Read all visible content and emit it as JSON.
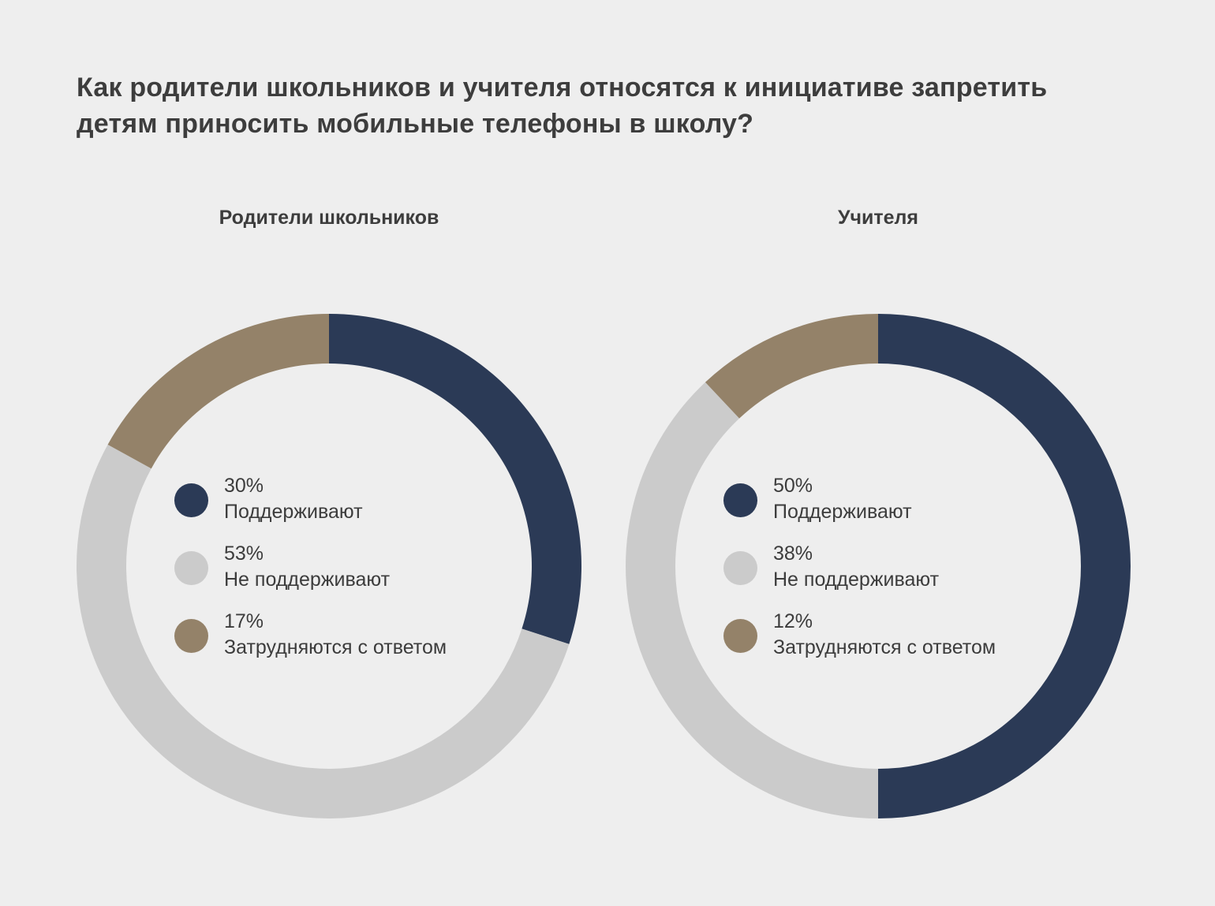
{
  "title": "Как родители школьников и учителя относятся к инициативе запретить детям приносить мобильные телефоны в школу?",
  "chart_data": [
    {
      "type": "pie",
      "subtype": "donut",
      "title": "Родители школьников",
      "start_angle": "top, clockwise",
      "slices": [
        {
          "label": "Поддерживают",
          "value": 30,
          "value_label": "30%",
          "color": "#2b3a56"
        },
        {
          "label": "Не поддерживают",
          "value": 53,
          "value_label": "53%",
          "color": "#cbcbcb"
        },
        {
          "label": "Затрудняются с ответом",
          "value": 17,
          "value_label": "17%",
          "color": "#948269"
        }
      ]
    },
    {
      "type": "pie",
      "subtype": "donut",
      "title": "Учителя",
      "start_angle": "top, clockwise",
      "slices": [
        {
          "label": "Поддерживают",
          "value": 50,
          "value_label": "50%",
          "color": "#2b3a56"
        },
        {
          "label": "Не поддерживают",
          "value": 38,
          "value_label": "38%",
          "color": "#cbcbcb"
        },
        {
          "label": "Затрудняются с ответом",
          "value": 12,
          "value_label": "12%",
          "color": "#948269"
        }
      ]
    }
  ]
}
